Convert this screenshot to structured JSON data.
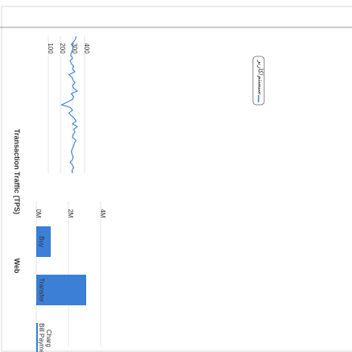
{
  "chart_data": [
    {
      "type": "line",
      "title": "",
      "xlabel": "",
      "ylabel": "Transaction Traffic (TPS)",
      "ylim": [
        0,
        400
      ],
      "y_ticks": [
        "100",
        "200",
        "300",
        "400"
      ],
      "x_range": [
        0,
        1
      ],
      "grid": true,
      "legend_position": "bottom-right",
      "series": [
        {
          "name": "سیستم/کاربر",
          "color": "#3b7fd6",
          "x": [
            0,
            0.02,
            0.04,
            0.06,
            0.08,
            0.1,
            0.12,
            0.14,
            0.16,
            0.18,
            0.2,
            0.22,
            0.24,
            0.26,
            0.28,
            0.3,
            0.32,
            0.34,
            0.36,
            0.38,
            0.4,
            0.42,
            0.44,
            0.46,
            0.48,
            0.5,
            0.52,
            0.54,
            0.56,
            0.58,
            0.6,
            0.62,
            0.64,
            0.66,
            0.68,
            0.7,
            0.72,
            0.74,
            0.76,
            0.78,
            0.8,
            0.82,
            0.84,
            0.86,
            0.88,
            0.9,
            0.92,
            0.94,
            0.96,
            0.98,
            1
          ],
          "values": [
            330,
            325,
            310,
            290,
            305,
            300,
            290,
            285,
            300,
            280,
            290,
            310,
            300,
            320,
            270,
            295,
            305,
            320,
            300,
            310,
            340,
            290,
            310,
            300,
            260,
            210,
            280,
            300,
            270,
            290,
            315,
            330,
            300,
            340,
            310,
            320,
            305,
            300,
            330,
            315,
            310,
            300,
            290,
            295,
            305,
            300,
            280,
            300,
            310,
            295,
            300
          ]
        }
      ]
    },
    {
      "type": "bar",
      "title": "",
      "xlabel": "",
      "ylabel": "Web",
      "categories": [
        "Buy",
        "Transfer",
        "Bill Payment"
      ],
      "category_lines": [
        [
          "Buy"
        ],
        [
          "Transfer"
        ],
        [
          "Bill Payme",
          "Charg"
        ]
      ],
      "values": [
        0.9,
        3.1,
        0.1
      ],
      "ylim": [
        0,
        4
      ],
      "y_ticks": [
        "0M",
        "2M",
        "4M"
      ],
      "color": "#3b7fd6"
    }
  ]
}
